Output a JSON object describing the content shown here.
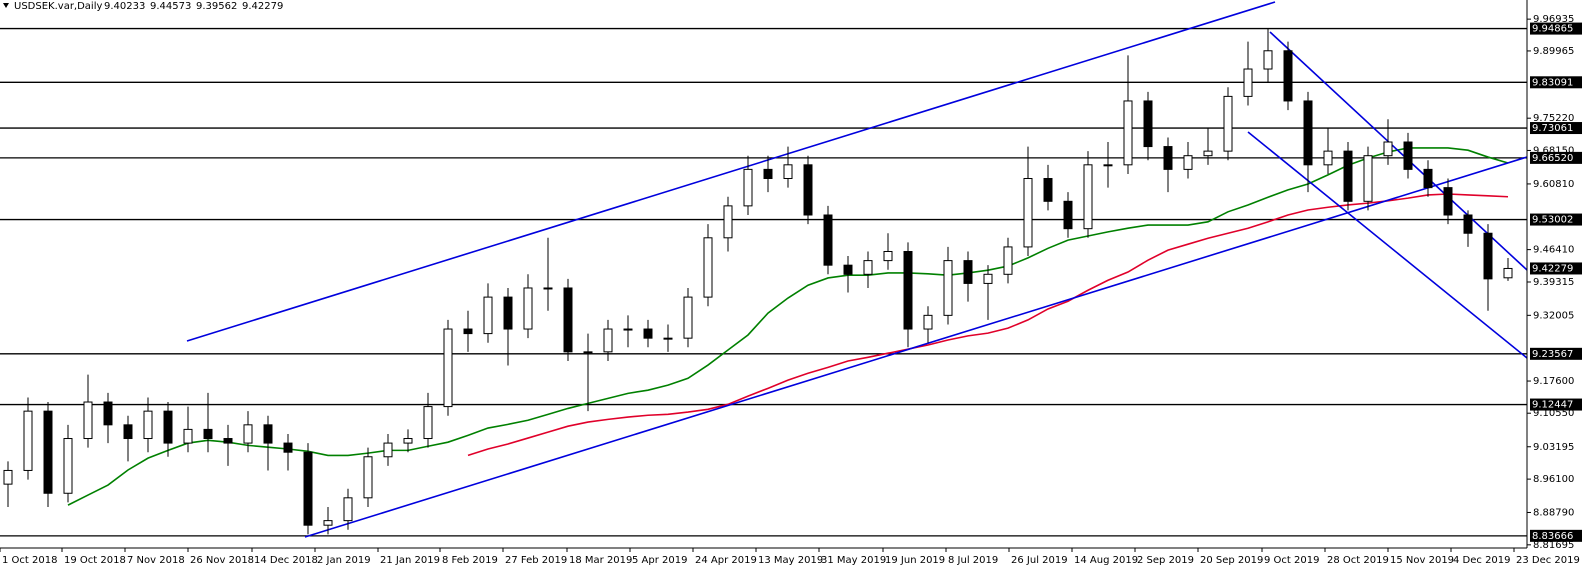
{
  "chart_data": {
    "type": "candlestick",
    "title": "USDSEK.var,Daily",
    "candle_color": "#000000",
    "ohlc": [
      [
        8.95,
        9.0,
        8.9,
        8.98
      ],
      [
        8.98,
        9.14,
        8.96,
        9.11
      ],
      [
        9.11,
        9.13,
        8.9,
        8.93
      ],
      [
        8.93,
        9.08,
        8.91,
        9.05
      ],
      [
        9.05,
        9.19,
        9.03,
        9.13
      ],
      [
        9.13,
        9.15,
        9.04,
        9.08
      ],
      [
        9.08,
        9.1,
        9.0,
        9.05
      ],
      [
        9.05,
        9.14,
        9.02,
        9.11
      ],
      [
        9.11,
        9.13,
        9.01,
        9.04
      ],
      [
        9.04,
        9.12,
        9.02,
        9.07
      ],
      [
        9.07,
        9.15,
        9.02,
        9.05
      ],
      [
        9.05,
        9.08,
        8.99,
        9.04
      ],
      [
        9.04,
        9.11,
        9.02,
        9.08
      ],
      [
        9.08,
        9.1,
        8.98,
        9.04
      ],
      [
        9.04,
        9.06,
        8.98,
        9.02
      ],
      [
        9.02,
        9.04,
        8.84,
        8.86
      ],
      [
        8.86,
        8.9,
        8.84,
        8.87
      ],
      [
        8.87,
        8.94,
        8.85,
        8.92
      ],
      [
        8.92,
        9.03,
        8.9,
        9.01
      ],
      [
        9.01,
        9.06,
        8.99,
        9.04
      ],
      [
        9.04,
        9.07,
        9.02,
        9.05
      ],
      [
        9.05,
        9.15,
        9.03,
        9.12
      ],
      [
        9.12,
        9.31,
        9.1,
        9.29
      ],
      [
        9.29,
        9.33,
        9.24,
        9.28
      ],
      [
        9.28,
        9.39,
        9.26,
        9.36
      ],
      [
        9.36,
        9.38,
        9.21,
        9.29
      ],
      [
        9.29,
        9.41,
        9.27,
        9.38
      ],
      [
        9.38,
        9.49,
        9.33,
        9.38
      ],
      [
        9.38,
        9.4,
        9.22,
        9.24
      ],
      [
        9.24,
        9.28,
        9.11,
        9.24
      ],
      [
        9.24,
        9.31,
        9.22,
        9.29
      ],
      [
        9.29,
        9.32,
        9.25,
        9.29
      ],
      [
        9.29,
        9.31,
        9.25,
        9.27
      ],
      [
        9.27,
        9.3,
        9.24,
        9.27
      ],
      [
        9.27,
        9.38,
        9.25,
        9.36
      ],
      [
        9.36,
        9.52,
        9.34,
        9.49
      ],
      [
        9.49,
        9.58,
        9.46,
        9.56
      ],
      [
        9.56,
        9.67,
        9.54,
        9.64
      ],
      [
        9.64,
        9.67,
        9.59,
        9.62
      ],
      [
        9.62,
        9.69,
        9.6,
        9.65
      ],
      [
        9.65,
        9.67,
        9.52,
        9.54
      ],
      [
        9.54,
        9.56,
        9.41,
        9.43
      ],
      [
        9.43,
        9.45,
        9.37,
        9.41
      ],
      [
        9.41,
        9.46,
        9.38,
        9.44
      ],
      [
        9.44,
        9.5,
        9.42,
        9.46
      ],
      [
        9.46,
        9.48,
        9.25,
        9.29
      ],
      [
        9.29,
        9.34,
        9.26,
        9.32
      ],
      [
        9.32,
        9.47,
        9.3,
        9.44
      ],
      [
        9.44,
        9.46,
        9.35,
        9.39
      ],
      [
        9.39,
        9.43,
        9.31,
        9.41
      ],
      [
        9.41,
        9.49,
        9.39,
        9.47
      ],
      [
        9.47,
        9.69,
        9.45,
        9.62
      ],
      [
        9.62,
        9.65,
        9.55,
        9.57
      ],
      [
        9.57,
        9.59,
        9.49,
        9.51
      ],
      [
        9.51,
        9.68,
        9.49,
        9.65
      ],
      [
        9.65,
        9.7,
        9.6,
        9.65
      ],
      [
        9.65,
        9.89,
        9.63,
        9.79
      ],
      [
        9.79,
        9.81,
        9.66,
        9.69
      ],
      [
        9.69,
        9.71,
        9.59,
        9.64
      ],
      [
        9.64,
        9.7,
        9.62,
        9.67
      ],
      [
        9.67,
        9.73,
        9.65,
        9.68
      ],
      [
        9.68,
        9.82,
        9.66,
        9.8
      ],
      [
        9.8,
        9.92,
        9.78,
        9.86
      ],
      [
        9.86,
        9.95,
        9.83,
        9.9
      ],
      [
        9.9,
        9.92,
        9.77,
        9.79
      ],
      [
        9.79,
        9.81,
        9.59,
        9.65
      ],
      [
        9.65,
        9.73,
        9.63,
        9.68
      ],
      [
        9.68,
        9.7,
        9.55,
        9.57
      ],
      [
        9.57,
        9.69,
        9.55,
        9.67
      ],
      [
        9.67,
        9.75,
        9.65,
        9.7
      ],
      [
        9.7,
        9.72,
        9.62,
        9.64
      ],
      [
        9.64,
        9.66,
        9.58,
        9.6
      ],
      [
        9.6,
        9.62,
        9.52,
        9.54
      ],
      [
        9.54,
        9.55,
        9.47,
        9.5
      ],
      [
        9.5,
        9.52,
        9.33,
        9.4
      ],
      [
        9.40233,
        9.44573,
        9.39562,
        9.42279
      ]
    ],
    "lines": [
      {
        "color": "#008000",
        "values": [
          null,
          null,
          null,
          8.904,
          8.926,
          8.948,
          8.981,
          9.007,
          9.024,
          9.04,
          9.046,
          9.042,
          9.035,
          9.031,
          9.027,
          9.022,
          9.013,
          9.013,
          9.018,
          9.024,
          9.024,
          9.033,
          9.042,
          9.057,
          9.073,
          9.081,
          9.09,
          9.103,
          9.116,
          9.127,
          9.138,
          9.149,
          9.156,
          9.167,
          9.182,
          9.211,
          9.244,
          9.277,
          9.325,
          9.358,
          9.386,
          9.402,
          9.408,
          9.408,
          9.413,
          9.413,
          9.411,
          9.408,
          9.413,
          9.419,
          9.428,
          9.446,
          9.467,
          9.485,
          9.494,
          9.503,
          9.511,
          9.518,
          9.518,
          9.518,
          9.525,
          9.547,
          9.562,
          9.579,
          9.595,
          9.608,
          9.628,
          9.649,
          9.665,
          9.678,
          9.687,
          9.687,
          9.687,
          9.682,
          9.667,
          9.654
        ]
      },
      {
        "color": "#e0002a",
        "values": [
          null,
          null,
          null,
          null,
          null,
          null,
          null,
          null,
          null,
          null,
          null,
          null,
          null,
          null,
          null,
          null,
          null,
          null,
          null,
          null,
          null,
          null,
          null,
          9.013,
          9.027,
          9.038,
          9.051,
          9.064,
          9.077,
          9.086,
          9.092,
          9.097,
          9.101,
          9.103,
          9.108,
          9.114,
          9.125,
          9.143,
          9.16,
          9.178,
          9.193,
          9.206,
          9.22,
          9.228,
          9.237,
          9.246,
          9.255,
          9.266,
          9.275,
          9.281,
          9.292,
          9.31,
          9.334,
          9.351,
          9.375,
          9.397,
          9.415,
          9.441,
          9.463,
          9.476,
          9.489,
          9.5,
          9.511,
          9.525,
          9.54,
          9.551,
          9.557,
          9.562,
          9.566,
          9.571,
          9.577,
          9.584,
          9.586,
          9.584,
          9.582,
          9.58
        ]
      }
    ],
    "levels": [
      9.94865,
      9.83091,
      9.73061,
      {
        "value": 9.6652,
        "label": "9.66520"
      },
      9.53002,
      9.23567,
      9.12447,
      8.83666
    ],
    "level_color": "#000000",
    "xlim": [
      -0.4,
      75.95
    ],
    "ylim": [
      8.81,
      9.985
    ],
    "yticks": [
      9.96935,
      9.89965,
      {
        "value": 9.7522,
        "label": "9.75220"
      },
      {
        "value": 9.6815,
        "label": "9.68150"
      },
      {
        "value": 9.6081,
        "label": "9.60810"
      },
      {
        "value": 9.4641,
        "label": "9.46410"
      },
      9.39315,
      9.32005,
      {
        "value": 9.176,
        "label": "9.17600"
      },
      {
        "value": 9.1055,
        "label": "9.10550"
      },
      9.03195,
      {
        "value": 8.961,
        "label": "8.96100"
      },
      {
        "value": 8.8879,
        "label": "8.88790"
      },
      8.81695
    ],
    "xticks": [
      {
        "value": -0.4,
        "label": "1 Oct 2018"
      },
      {
        "value": 2.7,
        "label": "19 Oct 2018"
      },
      {
        "value": 5.85,
        "label": "7 Nov 2018"
      },
      {
        "value": 9,
        "label": "26 Nov 2018"
      },
      {
        "value": 12.2,
        "label": "14 Dec 2018"
      },
      {
        "value": 15.35,
        "label": "2 Jan 2019"
      },
      {
        "value": 18.5,
        "label": "21 Jan 2019"
      },
      {
        "value": 21.6,
        "label": "8 Feb 2019"
      },
      {
        "value": 24.75,
        "label": "27 Feb 2019"
      },
      {
        "value": 27.95,
        "label": "18 Mar 2019"
      },
      {
        "value": 31.1,
        "label": "5 Apr 2019"
      },
      {
        "value": 34.25,
        "label": "24 Apr 2019"
      },
      {
        "value": 37.4,
        "label": "13 May 2019"
      },
      {
        "value": 40.55,
        "label": "31 May 2019"
      },
      {
        "value": 43.75,
        "label": "19 Jun 2019"
      },
      {
        "value": 46.9,
        "label": "8 Jul 2019"
      },
      {
        "value": 50.05,
        "label": "26 Jul 2019"
      },
      {
        "value": 53.2,
        "label": "14 Aug 2019"
      },
      {
        "value": 56.35,
        "label": "2 Sep 2019"
      },
      {
        "value": 59.5,
        "label": "20 Sep 2019"
      },
      {
        "value": 62.7,
        "label": "9 Oct 2019"
      },
      {
        "value": 65.85,
        "label": "28 Oct 2019"
      },
      {
        "value": 69,
        "label": "15 Nov 2019"
      },
      {
        "value": 72.15,
        "label": "4 Dec 2019"
      },
      {
        "value": 75.3,
        "label": "23 Dec 2019"
      }
    ]
  }
}
